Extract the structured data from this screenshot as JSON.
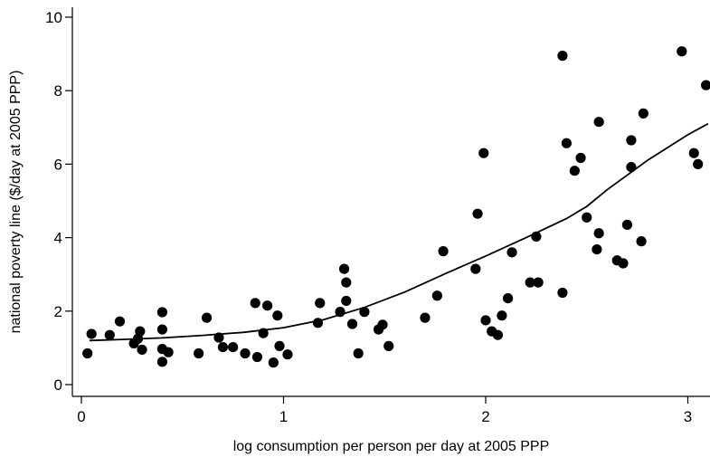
{
  "chart_data": {
    "type": "scatter",
    "title": "",
    "xlabel": "log consumption per person per day at 2005 PPP",
    "ylabel": "national poverty line ($/day at 2005 PPP)",
    "xlim": [
      -0.05,
      3.1
    ],
    "ylim": [
      -0.25,
      10.3
    ],
    "xticks": [
      0,
      1,
      2,
      3
    ],
    "yticks": [
      0,
      2,
      4,
      6,
      8,
      10
    ],
    "grid": false,
    "legend": "none",
    "colors": {
      "points": "#000000",
      "fit": "#000000"
    },
    "series": [
      {
        "kind": "scatter",
        "points": [
          [
            0.03,
            0.85
          ],
          [
            0.05,
            1.38
          ],
          [
            0.14,
            1.35
          ],
          [
            0.19,
            1.72
          ],
          [
            0.26,
            1.12
          ],
          [
            0.28,
            1.25
          ],
          [
            0.29,
            1.45
          ],
          [
            0.3,
            0.95
          ],
          [
            0.4,
            1.97
          ],
          [
            0.4,
            1.5
          ],
          [
            0.4,
            0.97
          ],
          [
            0.4,
            0.62
          ],
          [
            0.43,
            0.88
          ],
          [
            0.58,
            0.85
          ],
          [
            0.62,
            1.82
          ],
          [
            0.68,
            1.28
          ],
          [
            0.7,
            1.02
          ],
          [
            0.75,
            1.02
          ],
          [
            0.81,
            0.85
          ],
          [
            0.86,
            2.22
          ],
          [
            0.87,
            0.75
          ],
          [
            0.9,
            1.4
          ],
          [
            0.92,
            2.15
          ],
          [
            0.95,
            0.6
          ],
          [
            0.97,
            1.88
          ],
          [
            0.98,
            1.05
          ],
          [
            1.02,
            0.82
          ],
          [
            1.17,
            1.68
          ],
          [
            1.18,
            2.22
          ],
          [
            1.28,
            1.98
          ],
          [
            1.3,
            3.15
          ],
          [
            1.31,
            2.78
          ],
          [
            1.31,
            2.28
          ],
          [
            1.34,
            1.65
          ],
          [
            1.37,
            0.85
          ],
          [
            1.4,
            1.98
          ],
          [
            1.47,
            1.5
          ],
          [
            1.49,
            1.63
          ],
          [
            1.52,
            1.05
          ],
          [
            1.7,
            1.82
          ],
          [
            1.76,
            2.42
          ],
          [
            1.79,
            3.63
          ],
          [
            1.95,
            3.15
          ],
          [
            1.96,
            4.65
          ],
          [
            1.99,
            6.3
          ],
          [
            2.0,
            1.75
          ],
          [
            2.03,
            1.45
          ],
          [
            2.06,
            1.35
          ],
          [
            2.08,
            1.88
          ],
          [
            2.11,
            2.35
          ],
          [
            2.13,
            3.6
          ],
          [
            2.22,
            2.78
          ],
          [
            2.25,
            4.03
          ],
          [
            2.26,
            2.78
          ],
          [
            2.38,
            8.95
          ],
          [
            2.38,
            2.5
          ],
          [
            2.4,
            6.57
          ],
          [
            2.44,
            5.82
          ],
          [
            2.47,
            6.17
          ],
          [
            2.5,
            4.55
          ],
          [
            2.55,
            3.68
          ],
          [
            2.56,
            7.15
          ],
          [
            2.56,
            4.12
          ],
          [
            2.65,
            3.38
          ],
          [
            2.68,
            3.3
          ],
          [
            2.7,
            4.35
          ],
          [
            2.72,
            6.65
          ],
          [
            2.72,
            5.92
          ],
          [
            2.77,
            3.9
          ],
          [
            2.78,
            7.38
          ],
          [
            2.97,
            9.07
          ],
          [
            3.03,
            6.3
          ],
          [
            3.05,
            6.0
          ],
          [
            3.09,
            8.15
          ]
        ]
      },
      {
        "kind": "line",
        "points": [
          [
            0.04,
            1.2
          ],
          [
            0.2,
            1.23
          ],
          [
            0.4,
            1.27
          ],
          [
            0.6,
            1.34
          ],
          [
            0.8,
            1.42
          ],
          [
            1.0,
            1.55
          ],
          [
            1.2,
            1.77
          ],
          [
            1.4,
            2.1
          ],
          [
            1.6,
            2.52
          ],
          [
            1.8,
            3.02
          ],
          [
            2.0,
            3.5
          ],
          [
            2.2,
            4.0
          ],
          [
            2.4,
            4.52
          ],
          [
            2.5,
            4.85
          ],
          [
            2.6,
            5.3
          ],
          [
            2.8,
            6.1
          ],
          [
            3.0,
            6.8
          ],
          [
            3.1,
            7.1
          ]
        ]
      }
    ]
  }
}
